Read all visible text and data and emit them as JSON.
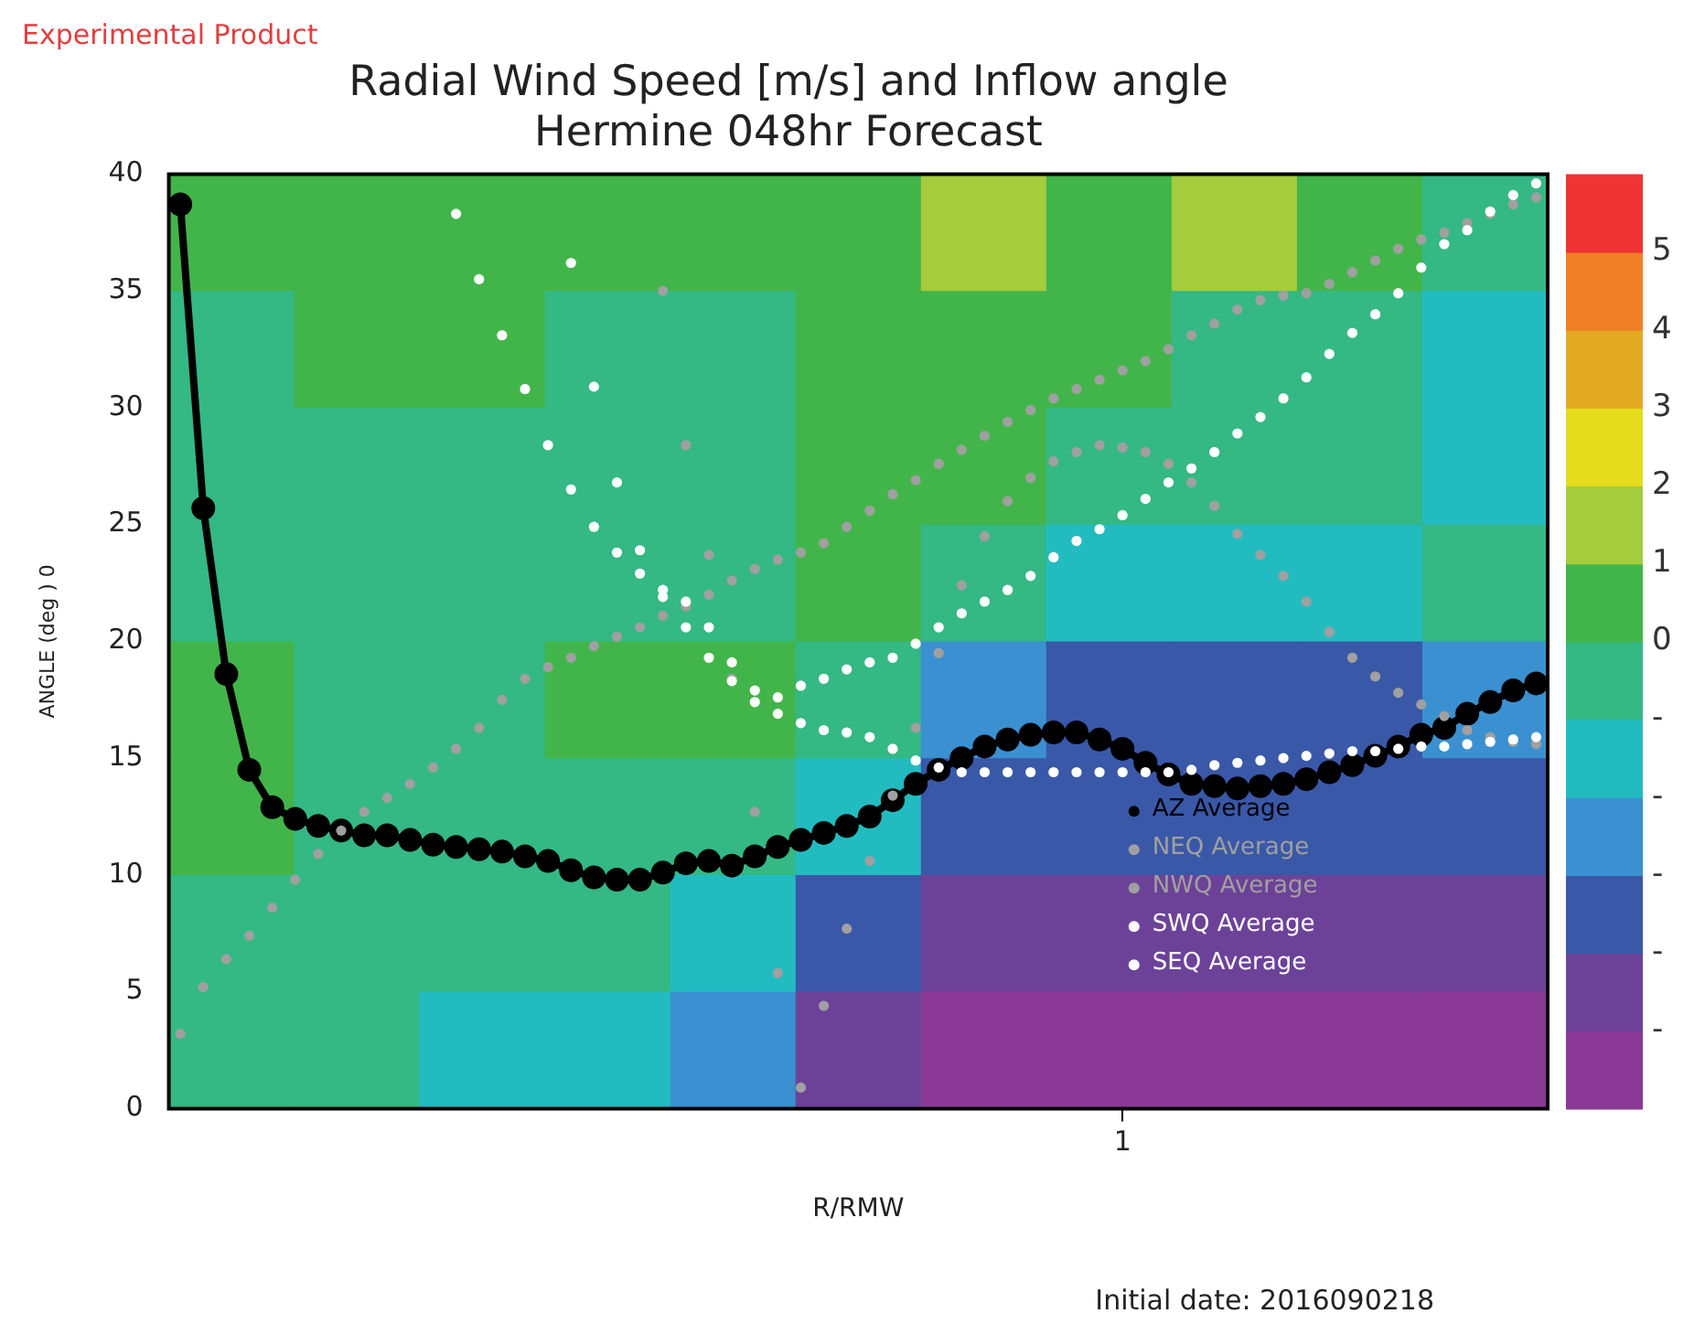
{
  "chart_data": [
    {
      "type": "heatmap",
      "categories": [
        null,
        null,
        null,
        null,
        null,
        null,
        null,
        null,
        null,
        null,
        null
      ],
      "y_categories": [
        null,
        null,
        null,
        null,
        null,
        null,
        null,
        null
      ],
      "cells": [
        [
          0.5,
          0.5,
          0.5,
          0.5,
          0.5,
          0.5,
          1.5,
          0.5,
          1.5,
          0.5,
          -0.5
        ],
        [
          -0.5,
          0.5,
          0.5,
          -0.5,
          -0.5,
          0.5,
          0.5,
          0.5,
          -0.5,
          -0.5,
          -1.5
        ],
        [
          -0.5,
          -0.5,
          -0.5,
          -0.5,
          -0.5,
          0.5,
          0.5,
          -0.5,
          -0.5,
          -0.5,
          -1.5
        ],
        [
          -0.5,
          -0.5,
          -0.5,
          -0.5,
          -0.5,
          0.5,
          -0.5,
          -1.5,
          -1.5,
          -1.5,
          -0.5
        ],
        [
          0.5,
          -0.5,
          -0.5,
          0.5,
          0.5,
          -0.5,
          -2.5,
          -3.5,
          -3.5,
          -3.5,
          -2.5
        ],
        [
          0.5,
          -0.5,
          -0.5,
          -0.5,
          -0.5,
          -1.5,
          -3.5,
          -3.5,
          -3.5,
          -3.5,
          -3.5
        ],
        [
          -0.5,
          -0.5,
          -0.5,
          -0.5,
          -1.5,
          -3.5,
          -4.5,
          -4.5,
          -4.5,
          -4.5,
          -4.5
        ],
        [
          -0.5,
          -0.5,
          -1.5,
          -1.5,
          -2.5,
          -4.5,
          -5.5,
          -5.5,
          -5.5,
          -5.5,
          -5.5
        ]
      ],
      "colors": [
        "#8a3a96",
        "#6c4299",
        "#3a58a8",
        "#3a90d0",
        "#22bcc0",
        "#34b884",
        "#42b54a",
        "#a4cc3c",
        "#e4dc1c",
        "#e4aa24",
        "#f07e24",
        "#ee3434"
      ],
      "clim": [
        -6,
        6
      ],
      "cticks": [
        5,
        4,
        3,
        2,
        1,
        0,
        {
          "value": -1,
          "label": "-"
        },
        {
          "value": -2,
          "label": "-"
        },
        {
          "value": -3,
          "label": "-"
        },
        {
          "value": -4,
          "label": "-"
        },
        {
          "value": -5,
          "label": "-"
        }
      ]
    },
    {
      "type": "scatter",
      "title": "Radial Wind Speed [m/s] and Inflow angle",
      "subtitle": "Hermine 048hr Forecast",
      "xlabel": "R/RMW",
      "ylabel": "ANGLE (deg ) 0",
      "annotations": [
        "Experimental Product",
        "Initial date: 2016090218"
      ],
      "categories": [
        null,
        null,
        null,
        null,
        null,
        null,
        null,
        null,
        null,
        null,
        null,
        null,
        null,
        null,
        null,
        null,
        null,
        null,
        null,
        null,
        null,
        null,
        null,
        null,
        null,
        null,
        null,
        null,
        null,
        null,
        null,
        null,
        null,
        null,
        null,
        null,
        null,
        null,
        null,
        null,
        null,
        "1",
        null,
        null,
        null,
        null,
        null,
        null,
        null,
        null,
        null,
        null,
        null,
        null,
        null,
        null,
        null,
        null,
        null,
        null
      ],
      "ylim": [
        0,
        40
      ],
      "yticks": [
        0,
        5,
        10,
        15,
        20,
        25,
        30,
        35,
        40
      ],
      "legend": "right",
      "marker": "circle",
      "series": [
        {
          "name": "AZ Average",
          "type": "line",
          "color": "#000000",
          "values": [
            38.7,
            25.7,
            18.6,
            14.5,
            12.9,
            12.4,
            12.1,
            11.9,
            11.7,
            11.7,
            11.5,
            11.3,
            11.2,
            11.1,
            11.0,
            10.8,
            10.6,
            10.2,
            9.9,
            9.8,
            9.8,
            10.1,
            10.5,
            10.6,
            10.4,
            10.8,
            11.2,
            11.5,
            11.8,
            12.1,
            12.5,
            13.2,
            13.9,
            14.5,
            15.0,
            15.5,
            15.8,
            16.0,
            16.1,
            16.1,
            15.8,
            15.4,
            14.8,
            14.3,
            13.9,
            13.8,
            13.7,
            13.8,
            13.9,
            14.1,
            14.4,
            14.7,
            15.1,
            15.5,
            16.0,
            16.3,
            16.9,
            17.4,
            17.9,
            18.2
          ]
        },
        {
          "name": "NEQ Average",
          "type": "scatter",
          "color": "#a0a0a0",
          "values": [
            3.2,
            5.2,
            6.4,
            7.4,
            8.6,
            9.8,
            10.9,
            11.9,
            12.7,
            13.3,
            13.9,
            14.6,
            15.4,
            16.3,
            17.5,
            18.4,
            18.9,
            19.3,
            19.8,
            20.2,
            20.6,
            21.1,
            21.5,
            22.0,
            22.6,
            23.1,
            23.5,
            23.8,
            24.2,
            24.9,
            25.6,
            26.3,
            26.9,
            27.6,
            28.2,
            28.8,
            29.4,
            29.9,
            30.4,
            30.8,
            31.2,
            31.6,
            32.0,
            32.5,
            33.1,
            33.6,
            34.2,
            34.6,
            34.8,
            34.9,
            35.3,
            35.8,
            36.3,
            36.8,
            37.2,
            37.5,
            37.9,
            38.3,
            38.7,
            39.0
          ]
        },
        {
          "name": "NWQ Average",
          "type": "scatter",
          "color": "#a0a0a0",
          "values": [
            null,
            null,
            null,
            null,
            null,
            null,
            null,
            null,
            null,
            null,
            null,
            null,
            null,
            null,
            null,
            null,
            null,
            null,
            null,
            null,
            null,
            35.0,
            28.4,
            23.7,
            18.4,
            12.7,
            5.8,
            0.9,
            4.4,
            7.7,
            10.6,
            13.4,
            16.3,
            19.5,
            22.4,
            24.5,
            26.0,
            27.0,
            27.7,
            28.1,
            28.4,
            28.3,
            28.1,
            27.6,
            26.8,
            25.8,
            24.6,
            23.7,
            22.8,
            21.7,
            20.4,
            19.3,
            18.5,
            17.8,
            17.3,
            16.8,
            16.2,
            15.9,
            15.7,
            15.6
          ]
        },
        {
          "name": "SWQ Average",
          "type": "scatter",
          "color": "#ffffff",
          "values": [
            null,
            null,
            null,
            null,
            null,
            null,
            null,
            null,
            null,
            null,
            null,
            null,
            null,
            null,
            null,
            null,
            null,
            36.2,
            30.9,
            26.8,
            23.9,
            21.9,
            20.6,
            19.3,
            18.3,
            17.4,
            17.6,
            18.1,
            18.4,
            18.8,
            19.1,
            19.3,
            19.9,
            20.6,
            21.2,
            21.7,
            22.2,
            22.8,
            23.6,
            24.3,
            24.8,
            25.4,
            26.1,
            26.8,
            27.4,
            28.1,
            28.9,
            29.6,
            30.4,
            31.3,
            32.3,
            33.2,
            34.0,
            34.9,
            36.0,
            37.0,
            37.6,
            38.4,
            39.1,
            39.6
          ]
        },
        {
          "name": "SEQ Average",
          "type": "scatter",
          "color": "#ffffff",
          "values": [
            null,
            null,
            null,
            null,
            null,
            null,
            null,
            null,
            null,
            null,
            null,
            null,
            38.3,
            35.5,
            33.1,
            30.8,
            28.4,
            26.5,
            24.9,
            23.8,
            22.9,
            22.2,
            21.7,
            20.6,
            19.1,
            17.9,
            16.9,
            16.5,
            16.2,
            16.1,
            15.9,
            15.4,
            14.9,
            14.6,
            14.4,
            14.4,
            14.4,
            14.4,
            14.4,
            14.4,
            14.4,
            14.4,
            14.4,
            14.4,
            14.5,
            14.7,
            14.8,
            14.9,
            15.0,
            15.1,
            15.2,
            15.3,
            15.3,
            15.4,
            15.5,
            15.5,
            15.6,
            15.7,
            15.8,
            15.9
          ]
        }
      ]
    }
  ]
}
